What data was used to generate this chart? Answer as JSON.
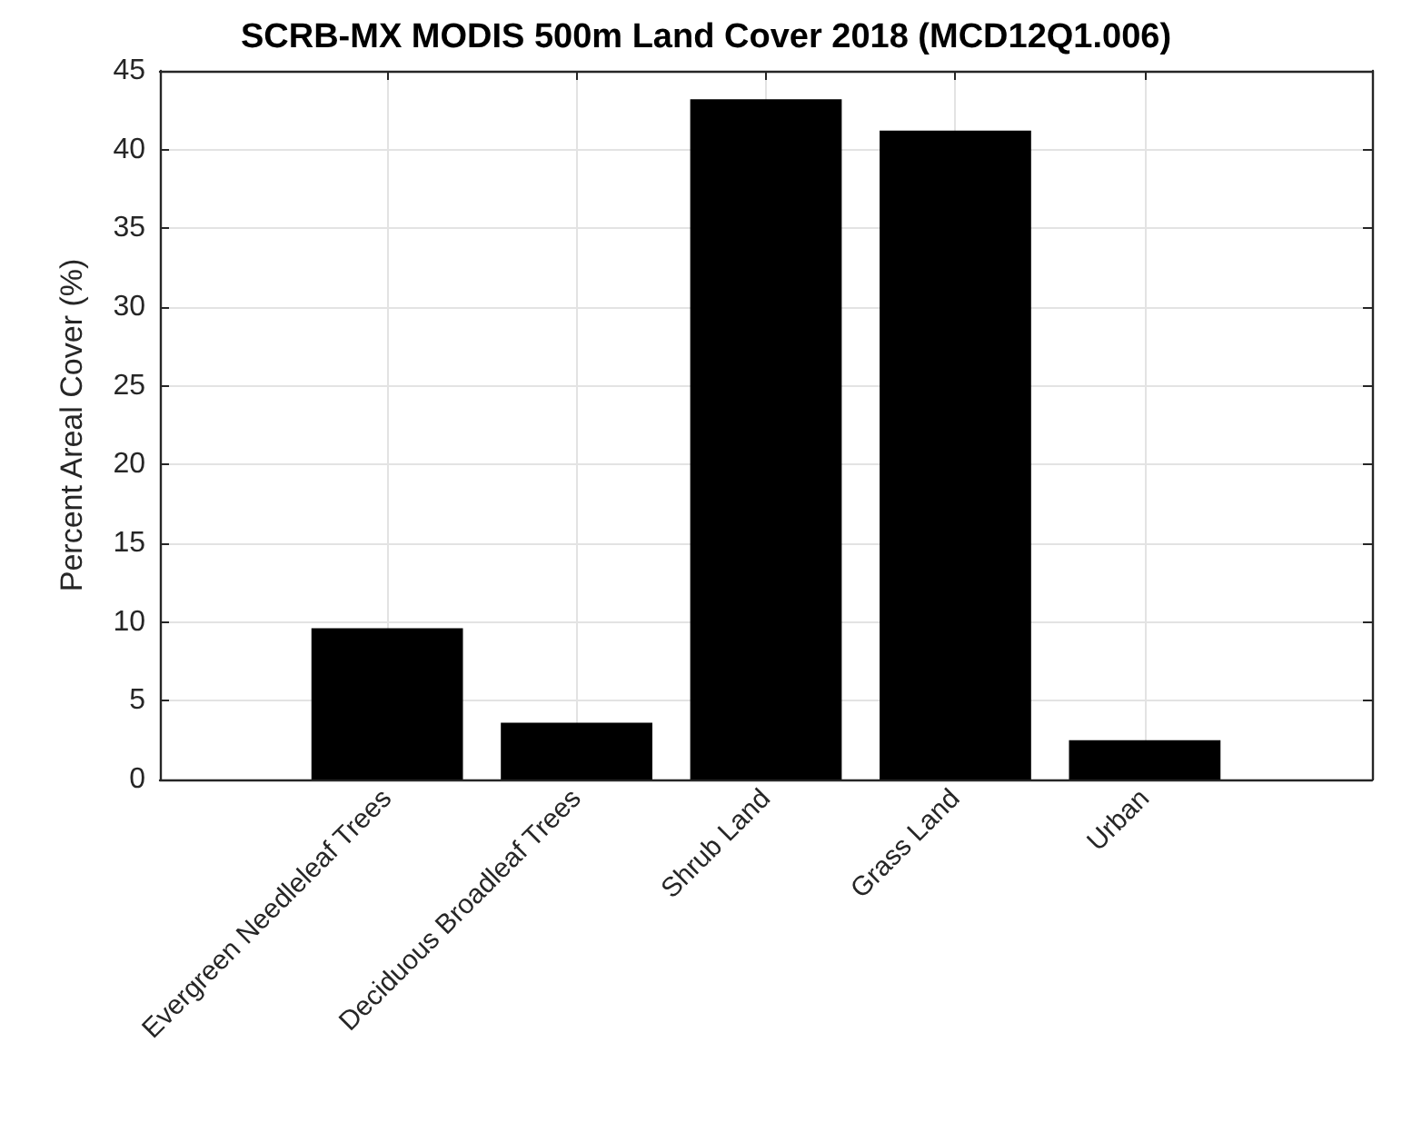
{
  "chart_data": {
    "type": "bar",
    "title": "SCRB-MX MODIS 500m Land Cover 2018 (MCD12Q1.006)",
    "ylabel": "Percent Areal Cover (%)",
    "categories": [
      "Evergreen Needleleaf Trees",
      "Deciduous Broadleaf Trees",
      "Shrub Land",
      "Grass Land",
      "Urban"
    ],
    "values": [
      9.6,
      3.6,
      43.2,
      41.2,
      2.5
    ],
    "color": "#000000",
    "ylim": [
      0,
      45
    ],
    "yticks": [
      0,
      5,
      10,
      15,
      20,
      25,
      30,
      35,
      40,
      45
    ],
    "grid": true
  }
}
